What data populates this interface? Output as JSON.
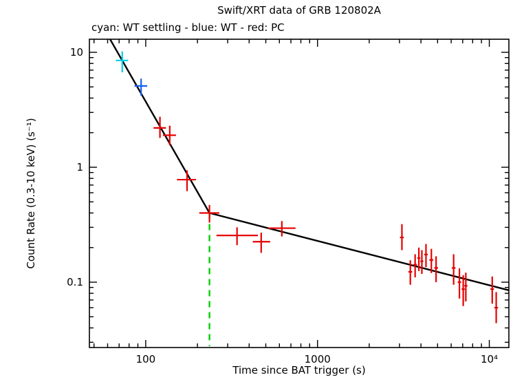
{
  "chart_data": {
    "type": "scatter",
    "title": "Swift/XRT data of GRB 120802A",
    "subtitle": "cyan: WT settling - blue: WT - red: PC",
    "xlabel": "Time since BAT trigger (s)",
    "ylabel": "Count Rate (0.3-10 keV) (s⁻¹)",
    "x_scale": "log",
    "y_scale": "log",
    "xlim": [
      47,
      13000
    ],
    "ylim": [
      0.027,
      13
    ],
    "grid": false,
    "x_ticks": [
      {
        "value": 100,
        "label": "100"
      },
      {
        "value": 1000,
        "label": "1000"
      },
      {
        "value": 10000,
        "label": "10⁴"
      }
    ],
    "y_ticks": [
      {
        "value": 0.1,
        "label": "0.1"
      },
      {
        "value": 1,
        "label": "1"
      },
      {
        "value": 10,
        "label": "10"
      }
    ],
    "point_columns": [
      "t",
      "t_lo",
      "t_hi",
      "rate",
      "rate_lo",
      "rate_hi"
    ],
    "series": [
      {
        "name": "WT settling",
        "color": "#00CFE8",
        "points": [
          [
            73,
            67,
            79,
            8.5,
            6.7,
            10.2
          ]
        ]
      },
      {
        "name": "WT",
        "color": "#1560F0",
        "points": [
          [
            94,
            86,
            102,
            5.1,
            4.2,
            5.9
          ]
        ]
      },
      {
        "name": "PC",
        "color": "#E60000",
        "points": [
          [
            121,
            111,
            131,
            2.2,
            1.8,
            2.75
          ],
          [
            138,
            126,
            150,
            1.9,
            1.55,
            2.3
          ],
          [
            174,
            152,
            196,
            0.78,
            0.62,
            0.94
          ],
          [
            235,
            205,
            268,
            0.4,
            0.33,
            0.47
          ],
          [
            340,
            258,
            450,
            0.255,
            0.21,
            0.3
          ],
          [
            470,
            420,
            530,
            0.225,
            0.18,
            0.27
          ],
          [
            620,
            515,
            745,
            0.295,
            0.25,
            0.34
          ],
          [
            3100,
            3020,
            3180,
            0.245,
            0.19,
            0.32
          ],
          [
            3470,
            3380,
            3560,
            0.123,
            0.095,
            0.155
          ],
          [
            3700,
            3620,
            3790,
            0.142,
            0.11,
            0.175
          ],
          [
            3890,
            3810,
            3970,
            0.162,
            0.125,
            0.2
          ],
          [
            4050,
            3970,
            4130,
            0.152,
            0.118,
            0.19
          ],
          [
            4280,
            4180,
            4380,
            0.174,
            0.135,
            0.215
          ],
          [
            4600,
            4480,
            4720,
            0.156,
            0.12,
            0.195
          ],
          [
            4900,
            4780,
            5030,
            0.133,
            0.1,
            0.168
          ],
          [
            6200,
            6050,
            6360,
            0.133,
            0.095,
            0.175
          ],
          [
            6700,
            6550,
            6860,
            0.1,
            0.072,
            0.132
          ],
          [
            7050,
            6900,
            7200,
            0.087,
            0.062,
            0.115
          ],
          [
            7300,
            7150,
            7460,
            0.093,
            0.068,
            0.121
          ],
          [
            10400,
            10150,
            10650,
            0.087,
            0.065,
            0.112
          ],
          [
            10970,
            10700,
            11250,
            0.06,
            0.044,
            0.082
          ]
        ]
      }
    ],
    "fit_line": {
      "color": "#000000",
      "points_t_rate": [
        [
          62,
          13
        ],
        [
          235,
          0.4
        ],
        [
          13000,
          0.085
        ]
      ]
    },
    "break_marker": {
      "t": 235,
      "rate_top": 0.4,
      "color": "#00CC00",
      "style": "dashed"
    }
  }
}
